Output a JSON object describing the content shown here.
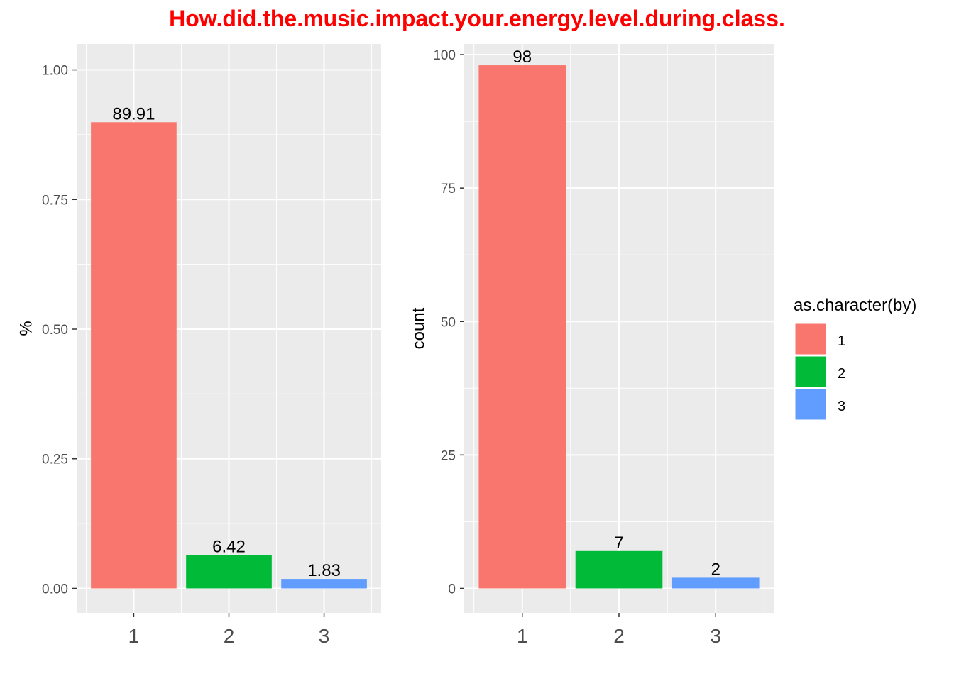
{
  "title": "How.did.the.music.impact.your.energy.level.during.class.",
  "colors": {
    "panel_bg": "#ebebeb",
    "grid": "#ffffff",
    "title": "#ff0000",
    "series": [
      "#f8766d",
      "#00ba38",
      "#619cff"
    ]
  },
  "chart_data": [
    {
      "type": "bar",
      "categories": [
        "1",
        "2",
        "3"
      ],
      "values": [
        0.8991,
        0.0642,
        0.0183
      ],
      "data_labels": [
        "89.91",
        "6.42",
        "1.83"
      ],
      "xlabel": "",
      "ylabel": "%",
      "ylim": [
        0,
        1.05
      ],
      "yticks": [
        0,
        0.25,
        0.5,
        0.75,
        1
      ],
      "ytick_labels": [
        "0.00",
        "0.25",
        "0.50",
        "0.75",
        "1.00"
      ],
      "grid": true
    },
    {
      "type": "bar",
      "categories": [
        "1",
        "2",
        "3"
      ],
      "values": [
        98,
        7,
        2
      ],
      "data_labels": [
        "98",
        "7",
        "2"
      ],
      "xlabel": "",
      "ylabel": "count",
      "ylim": [
        0,
        102
      ],
      "yticks": [
        0,
        25,
        50,
        75,
        100
      ],
      "ytick_labels": [
        "0",
        "25",
        "50",
        "75",
        "100"
      ],
      "grid": true
    }
  ],
  "legend": {
    "title": "as.character(by)",
    "placement": "right",
    "entries": [
      "1",
      "2",
      "3"
    ]
  }
}
